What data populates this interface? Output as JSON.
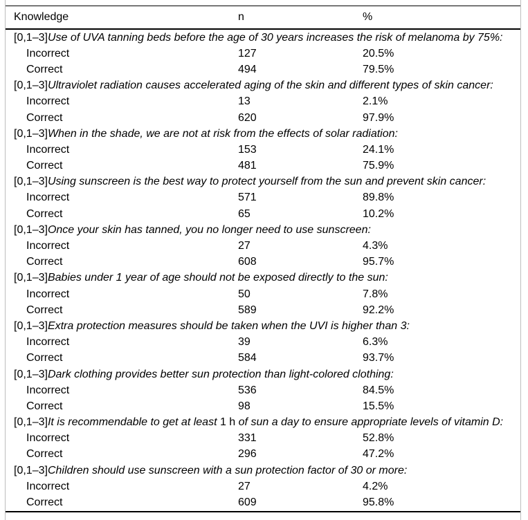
{
  "table": {
    "columns": [
      "Knowledge",
      "n",
      "%"
    ],
    "row_labels": {
      "incorrect": "Incorrect",
      "correct": "Correct"
    },
    "questions": [
      {
        "prefix": "[0,1–3]",
        "segments": [
          {
            "text": "Use of UVA tanning beds before the age of 30 years increases the risk of melanoma by 75%:",
            "italic": true
          }
        ],
        "incorrect": {
          "n": "127",
          "pct": "20.5%"
        },
        "correct": {
          "n": "494",
          "pct": "79.5%"
        }
      },
      {
        "prefix": "[0,1–3]",
        "segments": [
          {
            "text": "Ultraviolet radiation causes accelerated aging of the skin and different types of skin cancer:",
            "italic": true
          }
        ],
        "incorrect": {
          "n": "13",
          "pct": "2.1%"
        },
        "correct": {
          "n": "620",
          "pct": "97.9%"
        }
      },
      {
        "prefix": "[0,1–3]",
        "segments": [
          {
            "text": "When in the shade, we are not at risk from the effects of solar radiation:",
            "italic": true
          }
        ],
        "incorrect": {
          "n": "153",
          "pct": "24.1%"
        },
        "correct": {
          "n": "481",
          "pct": "75.9%"
        }
      },
      {
        "prefix": "[0,1–3]",
        "segments": [
          {
            "text": "Using sunscreen is the best way to protect yourself from the sun and prevent skin cancer:",
            "italic": true
          }
        ],
        "incorrect": {
          "n": "571",
          "pct": "89.8%"
        },
        "correct": {
          "n": "65",
          "pct": "10.2%"
        }
      },
      {
        "prefix": "[0,1–3]",
        "segments": [
          {
            "text": "Once your skin has tanned, you no longer need to use sunscreen:",
            "italic": true
          }
        ],
        "incorrect": {
          "n": "27",
          "pct": "4.3%"
        },
        "correct": {
          "n": "608",
          "pct": "95.7%"
        }
      },
      {
        "prefix": "[0,1–3]",
        "segments": [
          {
            "text": "Babies under 1 year of age should not be exposed directly to the sun:",
            "italic": true
          }
        ],
        "incorrect": {
          "n": "50",
          "pct": "7.8%"
        },
        "correct": {
          "n": "589",
          "pct": "92.2%"
        }
      },
      {
        "prefix": "[0,1–3]",
        "segments": [
          {
            "text": "Extra protection measures should be taken when the UVI is higher than 3:",
            "italic": true
          }
        ],
        "incorrect": {
          "n": "39",
          "pct": "6.3%"
        },
        "correct": {
          "n": "584",
          "pct": "93.7%"
        }
      },
      {
        "prefix": "[0,1–3]",
        "segments": [
          {
            "text": "Dark clothing provides better sun protection than light-colored clothing:",
            "italic": true
          }
        ],
        "incorrect": {
          "n": "536",
          "pct": "84.5%"
        },
        "correct": {
          "n": "98",
          "pct": "15.5%"
        }
      },
      {
        "prefix": "[0,1–3]",
        "segments": [
          {
            "text": "It is recommendable to get at least",
            "italic": true
          },
          {
            "text": " 1 h ",
            "italic": false
          },
          {
            "text": "of sun a day to ensure appropriate levels of vitamin D:",
            "italic": true
          }
        ],
        "incorrect": {
          "n": "331",
          "pct": "52.8%"
        },
        "correct": {
          "n": "296",
          "pct": "47.2%"
        }
      },
      {
        "prefix": "[0,1–3]",
        "segments": [
          {
            "text": "Children should use sunscreen with a sun protection factor of 30 or more:",
            "italic": true
          }
        ],
        "incorrect": {
          "n": "27",
          "pct": "4.2%"
        },
        "correct": {
          "n": "609",
          "pct": "95.8%"
        }
      }
    ]
  },
  "colors": {
    "text": "#000000",
    "rule": "#000000",
    "frame_edge": "#bdbdbd",
    "background": "#ffffff"
  }
}
